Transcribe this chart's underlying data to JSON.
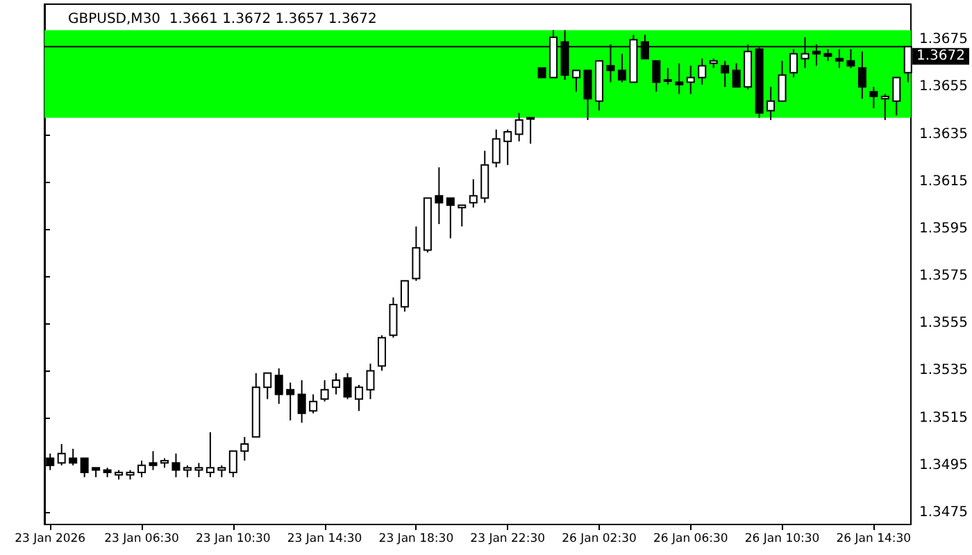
{
  "chart_data": {
    "type": "candlestick",
    "title": "GBPUSD,M30  1.3661 1.3672 1.3657 1.3672",
    "categories": [
      "23 Jan 2026",
      null,
      null,
      null,
      null,
      null,
      null,
      null,
      "23 Jan 06:30",
      null,
      null,
      null,
      null,
      null,
      null,
      null,
      "23 Jan 10:30",
      null,
      null,
      null,
      null,
      null,
      null,
      null,
      "23 Jan 14:30",
      null,
      null,
      null,
      null,
      null,
      null,
      null,
      "23 Jan 18:30",
      null,
      null,
      null,
      null,
      null,
      null,
      null,
      "23 Jan 22:30",
      null,
      null,
      null,
      null,
      null,
      null,
      null,
      "26 Jan 02:30",
      null,
      null,
      null,
      null,
      null,
      null,
      null,
      "26 Jan 06:30",
      null,
      null,
      null,
      null,
      null,
      null,
      null,
      "26 Jan 10:30",
      null,
      null,
      null,
      null,
      null,
      null,
      null,
      "26 Jan 14:30",
      null,
      null,
      null
    ],
    "ohlc": [
      [
        1.3498,
        1.35,
        1.3493,
        1.3495
      ],
      [
        1.3496,
        1.3504,
        1.3495,
        1.35
      ],
      [
        1.3498,
        1.3502,
        1.3495,
        1.3496
      ],
      [
        1.3498,
        1.3498,
        1.349,
        1.3492
      ],
      [
        1.3494,
        1.3494,
        1.349,
        1.3493
      ],
      [
        1.3493,
        1.3494,
        1.349,
        1.3492
      ],
      [
        1.3491,
        1.3493,
        1.3489,
        1.3492
      ],
      [
        1.3491,
        1.3493,
        1.3489,
        1.3492
      ],
      [
        1.3492,
        1.3497,
        1.349,
        1.3495
      ],
      [
        1.3496,
        1.3501,
        1.3493,
        1.3495
      ],
      [
        1.3496,
        1.3498,
        1.3494,
        1.3497
      ],
      [
        1.3496,
        1.35,
        1.349,
        1.3493
      ],
      [
        1.3493,
        1.3495,
        1.349,
        1.3494
      ],
      [
        1.3493,
        1.3496,
        1.349,
        1.3494
      ],
      [
        1.3492,
        1.3509,
        1.349,
        1.3494
      ],
      [
        1.3493,
        1.3495,
        1.349,
        1.3494
      ],
      [
        1.3492,
        1.3501,
        1.349,
        1.3501
      ],
      [
        1.3501,
        1.3507,
        1.3497,
        1.3504
      ],
      [
        1.3507,
        1.3534,
        1.3507,
        1.3528
      ],
      [
        1.3528,
        1.3534,
        1.3523,
        1.3534
      ],
      [
        1.3533,
        1.3536,
        1.3521,
        1.3525
      ],
      [
        1.3527,
        1.353,
        1.3514,
        1.3525
      ],
      [
        1.3525,
        1.3531,
        1.3513,
        1.3517
      ],
      [
        1.3518,
        1.3525,
        1.3517,
        1.3522
      ],
      [
        1.3523,
        1.3531,
        1.3522,
        1.3527
      ],
      [
        1.3528,
        1.3534,
        1.3525,
        1.3531
      ],
      [
        1.3532,
        1.3534,
        1.3523,
        1.3524
      ],
      [
        1.3523,
        1.3529,
        1.3518,
        1.3528
      ],
      [
        1.3527,
        1.3538,
        1.3523,
        1.3535
      ],
      [
        1.3537,
        1.355,
        1.3535,
        1.3549
      ],
      [
        1.355,
        1.3566,
        1.3549,
        1.3563
      ],
      [
        1.3562,
        1.3573,
        1.356,
        1.3573
      ],
      [
        1.3574,
        1.3596,
        1.3573,
        1.3587
      ],
      [
        1.3586,
        1.3608,
        1.3585,
        1.3608
      ],
      [
        1.3609,
        1.3621,
        1.3597,
        1.3606
      ],
      [
        1.3608,
        1.3608,
        1.3591,
        1.3605
      ],
      [
        1.3604,
        1.3605,
        1.3596,
        1.3605
      ],
      [
        1.3606,
        1.3616,
        1.3604,
        1.3609
      ],
      [
        1.3608,
        1.3628,
        1.3606,
        1.3622
      ],
      [
        1.3623,
        1.3637,
        1.3621,
        1.3633
      ],
      [
        1.3632,
        1.3637,
        1.3622,
        1.3636
      ],
      [
        1.3635,
        1.3644,
        1.3632,
        1.3641
      ],
      [
        1.3642,
        1.3642,
        1.3631,
        1.3642
      ],
      [
        1.3663,
        1.3663,
        1.3659,
        1.3659
      ],
      [
        1.3659,
        1.3679,
        1.3659,
        1.3676
      ],
      [
        1.3674,
        1.3679,
        1.3658,
        1.366
      ],
      [
        1.3659,
        1.3662,
        1.3653,
        1.3662
      ],
      [
        1.3662,
        1.3662,
        1.3641,
        1.365
      ],
      [
        1.3649,
        1.3666,
        1.3645,
        1.3666
      ],
      [
        1.3664,
        1.3673,
        1.3657,
        1.3662
      ],
      [
        1.3662,
        1.3669,
        1.3657,
        1.3658
      ],
      [
        1.3657,
        1.3677,
        1.3657,
        1.3675
      ],
      [
        1.3674,
        1.3677,
        1.3667,
        1.3667
      ],
      [
        1.3666,
        1.3666,
        1.3653,
        1.3657
      ],
      [
        1.3658,
        1.3663,
        1.3656,
        1.3658
      ],
      [
        1.3657,
        1.3665,
        1.3652,
        1.3656
      ],
      [
        1.3657,
        1.3664,
        1.3652,
        1.3659
      ],
      [
        1.3659,
        1.3667,
        1.3656,
        1.3664
      ],
      [
        1.3665,
        1.3667,
        1.3663,
        1.3666
      ],
      [
        1.3664,
        1.3666,
        1.3655,
        1.3661
      ],
      [
        1.3662,
        1.3665,
        1.3655,
        1.3655
      ],
      [
        1.3655,
        1.3673,
        1.3654,
        1.367
      ],
      [
        1.3671,
        1.3672,
        1.3642,
        1.3644
      ],
      [
        1.3645,
        1.3655,
        1.3641,
        1.3649
      ],
      [
        1.3649,
        1.3666,
        1.3649,
        1.366
      ],
      [
        1.3661,
        1.3671,
        1.3659,
        1.3669
      ],
      [
        1.3667,
        1.3676,
        1.3663,
        1.3669
      ],
      [
        1.367,
        1.3673,
        1.3664,
        1.3669
      ],
      [
        1.3669,
        1.3671,
        1.3666,
        1.3668
      ],
      [
        1.3667,
        1.3671,
        1.3663,
        1.3666
      ],
      [
        1.3666,
        1.3671,
        1.3663,
        1.3664
      ],
      [
        1.3663,
        1.367,
        1.365,
        1.3655
      ],
      [
        1.3653,
        1.3655,
        1.3646,
        1.3651
      ],
      [
        1.365,
        1.3652,
        1.3641,
        1.3651
      ],
      [
        1.3649,
        1.3659,
        1.3643,
        1.3659
      ],
      [
        1.3661,
        1.3672,
        1.3657,
        1.3672
      ]
    ],
    "ylim": [
      1.347,
      1.369
    ],
    "yticks": [
      1.3475,
      1.3495,
      1.3515,
      1.3535,
      1.3555,
      1.3575,
      1.3595,
      1.3615,
      1.3635,
      1.3655,
      1.3675
    ],
    "ref_lines": [
      {
        "axis": "y",
        "value": 1.3672,
        "label": "1.3672",
        "color": "#000000"
      }
    ],
    "bands": [
      {
        "axis": "y",
        "from": 1.3642,
        "to": 1.3679,
        "color": "#00ff00"
      }
    ]
  }
}
